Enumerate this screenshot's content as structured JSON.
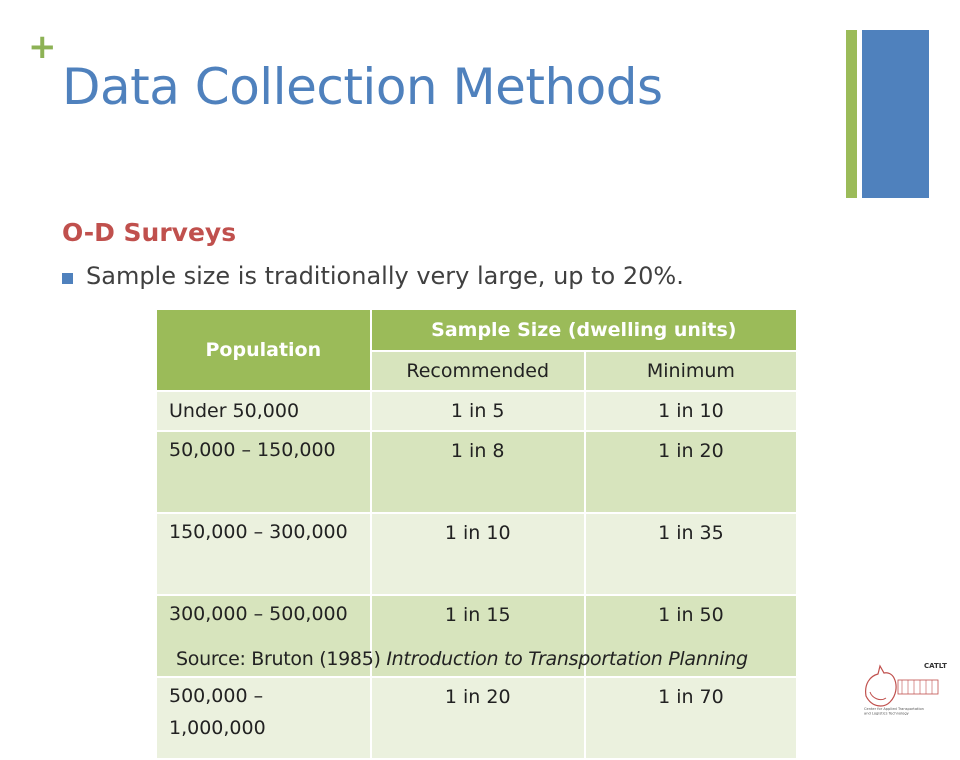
{
  "slide": {
    "plus_mark": "+",
    "title": "Data Collection Methods",
    "subtitle": "O-D Surveys",
    "bullet": "Sample size is traditionally very large, up to 20%."
  },
  "table": {
    "header_population": "Population",
    "header_sample": "Sample Size (dwelling units)",
    "sub_recommended": "Recommended",
    "sub_minimum": "Minimum",
    "rows": [
      {
        "population": "Under 50,000",
        "recommended": "1 in 5",
        "minimum": "1 in 10"
      },
      {
        "population": "50,000 – 150,000",
        "recommended": "1 in 8",
        "minimum": "1 in 20"
      },
      {
        "population": "150,000 – 300,000",
        "recommended": "1 in 10",
        "minimum": "1 in 35"
      },
      {
        "population": "300,000 – 500,000",
        "recommended": "1 in 15",
        "minimum": "1 in 50"
      },
      {
        "population": "500,000 – 1,000,000",
        "recommended": "1 in 20",
        "minimum": "1 in 70"
      }
    ]
  },
  "source": {
    "prefix": "Source: Bruton (1985) ",
    "book": "Introduction to Transportation Planning"
  },
  "logo": {
    "name": "CATLT",
    "caption_line1": "Center for Applied Transportation",
    "caption_line2": "and Logistics Technology"
  },
  "colors": {
    "accent_blue": "#4f81bd",
    "accent_green": "#9bbb59",
    "accent_red": "#c0504d"
  }
}
